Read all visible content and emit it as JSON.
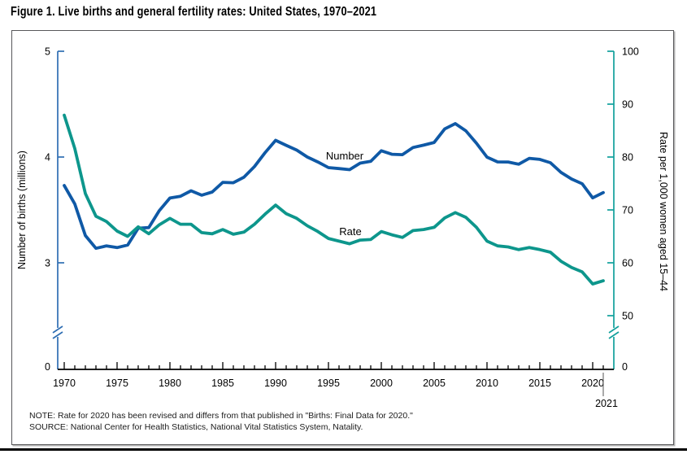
{
  "title": "Figure 1. Live births and general fertility rates: United States, 1970–2021",
  "note": "NOTE: Rate for 2020 has been revised and differs from that published in \"Births: Final Data for 2020.\"",
  "source": "SOURCE: National Center for Health Statistics, National Vital Statistics System, Natality.",
  "chart_data": {
    "type": "line",
    "grid": false,
    "legend": "inline-labels",
    "years": [
      1970,
      1971,
      1972,
      1973,
      1974,
      1975,
      1976,
      1977,
      1978,
      1979,
      1980,
      1981,
      1982,
      1983,
      1984,
      1985,
      1986,
      1987,
      1988,
      1989,
      1990,
      1991,
      1992,
      1993,
      1994,
      1995,
      1996,
      1997,
      1998,
      1999,
      2000,
      2001,
      2002,
      2003,
      2004,
      2005,
      2006,
      2007,
      2008,
      2009,
      2010,
      2011,
      2012,
      2013,
      2014,
      2015,
      2016,
      2017,
      2018,
      2019,
      2020,
      2021
    ],
    "series": [
      {
        "name": "Number",
        "label": "Number",
        "axis": "left",
        "color": "#0f59a6",
        "values": [
          3.731,
          3.556,
          3.258,
          3.137,
          3.16,
          3.144,
          3.168,
          3.327,
          3.333,
          3.494,
          3.612,
          3.629,
          3.681,
          3.639,
          3.669,
          3.761,
          3.757,
          3.809,
          3.91,
          4.041,
          4.158,
          4.111,
          4.065,
          4.0,
          3.953,
          3.9,
          3.891,
          3.881,
          3.942,
          3.959,
          4.059,
          4.026,
          4.022,
          4.09,
          4.112,
          4.138,
          4.266,
          4.316,
          4.248,
          4.131,
          3.999,
          3.954,
          3.953,
          3.932,
          3.988,
          3.978,
          3.946,
          3.855,
          3.792,
          3.748,
          3.614,
          3.664
        ]
      },
      {
        "name": "Rate",
        "label": "Rate",
        "axis": "right",
        "color": "#0d968c",
        "values": [
          87.9,
          81.6,
          73.1,
          68.8,
          67.8,
          66.0,
          65.0,
          66.8,
          65.5,
          67.2,
          68.4,
          67.3,
          67.3,
          65.7,
          65.5,
          66.3,
          65.4,
          65.8,
          67.3,
          69.2,
          70.9,
          69.3,
          68.4,
          67.0,
          65.9,
          64.6,
          64.1,
          63.6,
          64.3,
          64.4,
          65.9,
          65.3,
          64.8,
          66.1,
          66.3,
          66.7,
          68.5,
          69.5,
          68.6,
          66.7,
          64.1,
          63.2,
          63.0,
          62.5,
          62.9,
          62.5,
          62.0,
          60.3,
          59.1,
          58.3,
          56.0,
          56.6
        ]
      }
    ],
    "left_axis": {
      "title": "Number of births (millions)",
      "color": "#2f6eb3",
      "ticks": [
        5,
        4,
        3
      ],
      "zero_label": "0",
      "axis_break": true,
      "range_shown": [
        3,
        5
      ]
    },
    "right_axis": {
      "title": "Rate per 1,000 women aged 15–44",
      "color": "#11a09c",
      "ticks": [
        100,
        90,
        80,
        70,
        60,
        50
      ],
      "zero_label": "0",
      "axis_break": true,
      "range_shown": [
        50,
        100
      ]
    },
    "x_axis": {
      "major_tick_labels": [
        1970,
        1975,
        1980,
        1985,
        1990,
        1995,
        2000,
        2005,
        2010,
        2015,
        2020
      ],
      "minor_tick_every": 1,
      "extra_label": "2021",
      "range": [
        1970,
        2021
      ]
    }
  }
}
